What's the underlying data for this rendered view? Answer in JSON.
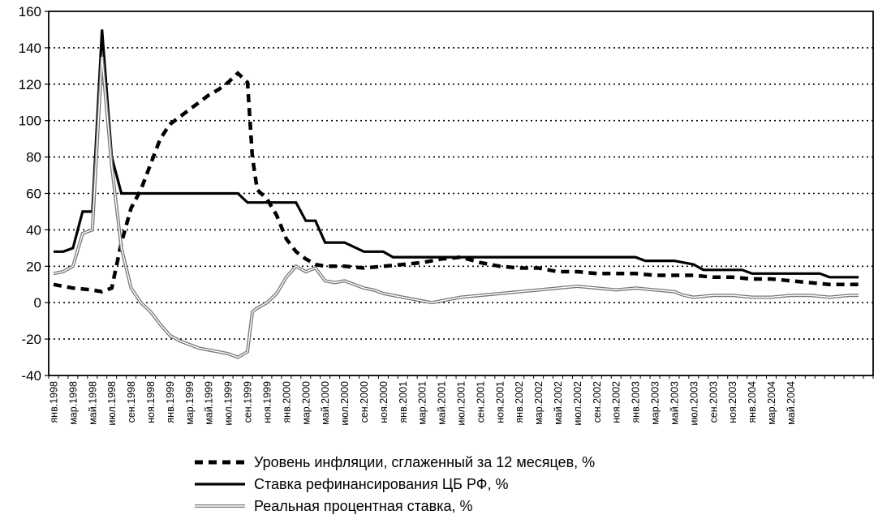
{
  "chart_data": {
    "type": "line",
    "ylim": [
      -40,
      160
    ],
    "yticks": [
      160,
      140,
      120,
      100,
      80,
      60,
      40,
      20,
      0,
      -20,
      -40
    ],
    "grid": true,
    "legend_placement": "bottom",
    "x_labels": [
      "янв.1998",
      "мар.1998",
      "май.1998",
      "июл.1998",
      "сен.1998",
      "ноя.1998",
      "янв.1999",
      "мар.1999",
      "май.1999",
      "июл.1999",
      "сен.1999",
      "ноя.1999",
      "янв.2000",
      "мар.2000",
      "май.2000",
      "июл.2000",
      "сен.2000",
      "ноя.2000",
      "янв.2001",
      "мар.2001",
      "май.2001",
      "июл.2001",
      "сен.2001",
      "ноя.2001",
      "янв.2002",
      "мар.2002",
      "май.2002",
      "июл.2002",
      "сен.2002",
      "ноя.2002",
      "янв.2003",
      "мар.2003",
      "май.2003",
      "июл.2003",
      "сен.2003",
      "ноя.2003",
      "янв.2004",
      "мар.2004",
      "май.2004"
    ],
    "series": [
      {
        "name": "Уровень инфляции, сглаженный за 12 месяцев, %",
        "style": "dashed",
        "color": "#000000",
        "points": [
          [
            0,
            10
          ],
          [
            2,
            8
          ],
          [
            4,
            7
          ],
          [
            5,
            6
          ],
          [
            6,
            8
          ],
          [
            7,
            33
          ],
          [
            8,
            52
          ],
          [
            9,
            62
          ],
          [
            10,
            76
          ],
          [
            11,
            90
          ],
          [
            12,
            98
          ],
          [
            13,
            102
          ],
          [
            14,
            106
          ],
          [
            15,
            110
          ],
          [
            16,
            114
          ],
          [
            17,
            117
          ],
          [
            18,
            121
          ],
          [
            19,
            126
          ],
          [
            20,
            121
          ],
          [
            20.5,
            80
          ],
          [
            21,
            62
          ],
          [
            22,
            57
          ],
          [
            23,
            48
          ],
          [
            24,
            35
          ],
          [
            25,
            28
          ],
          [
            26,
            24
          ],
          [
            27,
            21
          ],
          [
            28,
            20
          ],
          [
            30,
            20
          ],
          [
            32,
            19
          ],
          [
            34,
            20
          ],
          [
            36,
            21
          ],
          [
            38,
            22
          ],
          [
            40,
            24
          ],
          [
            42,
            25
          ],
          [
            44,
            22
          ],
          [
            46,
            20
          ],
          [
            48,
            19
          ],
          [
            50,
            19
          ],
          [
            52,
            17
          ],
          [
            54,
            17
          ],
          [
            56,
            16
          ],
          [
            58,
            16
          ],
          [
            60,
            16
          ],
          [
            62,
            15
          ],
          [
            64,
            15
          ],
          [
            66,
            15
          ],
          [
            68,
            14
          ],
          [
            70,
            14
          ],
          [
            72,
            13
          ],
          [
            74,
            13
          ],
          [
            76,
            12
          ],
          [
            78,
            11
          ],
          [
            80,
            10
          ],
          [
            82,
            10
          ],
          [
            83,
            10
          ]
        ]
      },
      {
        "name": "Ставка рефинансирования ЦБ РФ, %",
        "style": "solid",
        "color": "#000000",
        "points": [
          [
            0,
            28
          ],
          [
            1,
            28
          ],
          [
            2,
            30
          ],
          [
            3,
            50
          ],
          [
            4,
            50
          ],
          [
            5,
            150
          ],
          [
            6,
            80
          ],
          [
            7,
            60
          ],
          [
            8,
            60
          ],
          [
            9,
            60
          ],
          [
            10,
            60
          ],
          [
            12,
            60
          ],
          [
            14,
            60
          ],
          [
            16,
            60
          ],
          [
            18,
            60
          ],
          [
            19,
            60
          ],
          [
            20,
            55
          ],
          [
            22,
            55
          ],
          [
            24,
            55
          ],
          [
            25,
            55
          ],
          [
            26,
            45
          ],
          [
            27,
            45
          ],
          [
            28,
            33
          ],
          [
            30,
            33
          ],
          [
            32,
            28
          ],
          [
            34,
            28
          ],
          [
            35,
            25
          ],
          [
            37,
            25
          ],
          [
            40,
            25
          ],
          [
            45,
            25
          ],
          [
            50,
            25
          ],
          [
            55,
            25
          ],
          [
            60,
            25
          ],
          [
            61,
            23
          ],
          [
            64,
            23
          ],
          [
            66,
            21
          ],
          [
            67,
            18
          ],
          [
            70,
            18
          ],
          [
            71,
            18
          ],
          [
            72,
            16
          ],
          [
            78,
            16
          ],
          [
            79,
            16
          ],
          [
            80,
            14
          ],
          [
            83,
            14
          ]
        ]
      },
      {
        "name": "Реальная процентная ставка, %",
        "style": "double-thin",
        "color": "#777777",
        "points": [
          [
            0,
            16
          ],
          [
            1,
            17
          ],
          [
            2,
            20
          ],
          [
            3,
            38
          ],
          [
            4,
            40
          ],
          [
            5,
            135
          ],
          [
            6,
            75
          ],
          [
            7,
            30
          ],
          [
            8,
            8
          ],
          [
            9,
            0
          ],
          [
            10,
            -5
          ],
          [
            11,
            -12
          ],
          [
            12,
            -18
          ],
          [
            13,
            -21
          ],
          [
            14,
            -23
          ],
          [
            15,
            -25
          ],
          [
            16,
            -26
          ],
          [
            17,
            -27
          ],
          [
            18,
            -28
          ],
          [
            19,
            -30
          ],
          [
            20,
            -27
          ],
          [
            20.5,
            -5
          ],
          [
            21,
            -3
          ],
          [
            22,
            0
          ],
          [
            23,
            5
          ],
          [
            24,
            14
          ],
          [
            25,
            20
          ],
          [
            26,
            17
          ],
          [
            27,
            19
          ],
          [
            28,
            12
          ],
          [
            29,
            11
          ],
          [
            30,
            12
          ],
          [
            31,
            10
          ],
          [
            32,
            8
          ],
          [
            33,
            7
          ],
          [
            34,
            5
          ],
          [
            35,
            4
          ],
          [
            36,
            3
          ],
          [
            37,
            2
          ],
          [
            38,
            1
          ],
          [
            39,
            0
          ],
          [
            40,
            1
          ],
          [
            41,
            2
          ],
          [
            42,
            3
          ],
          [
            44,
            4
          ],
          [
            46,
            5
          ],
          [
            48,
            6
          ],
          [
            50,
            7
          ],
          [
            52,
            8
          ],
          [
            54,
            9
          ],
          [
            56,
            8
          ],
          [
            58,
            7
          ],
          [
            60,
            8
          ],
          [
            62,
            7
          ],
          [
            64,
            6
          ],
          [
            65,
            4
          ],
          [
            66,
            3
          ],
          [
            68,
            4
          ],
          [
            70,
            4
          ],
          [
            72,
            3
          ],
          [
            74,
            3
          ],
          [
            76,
            4
          ],
          [
            78,
            4
          ],
          [
            80,
            3
          ],
          [
            82,
            4
          ],
          [
            83,
            4
          ]
        ]
      }
    ]
  }
}
